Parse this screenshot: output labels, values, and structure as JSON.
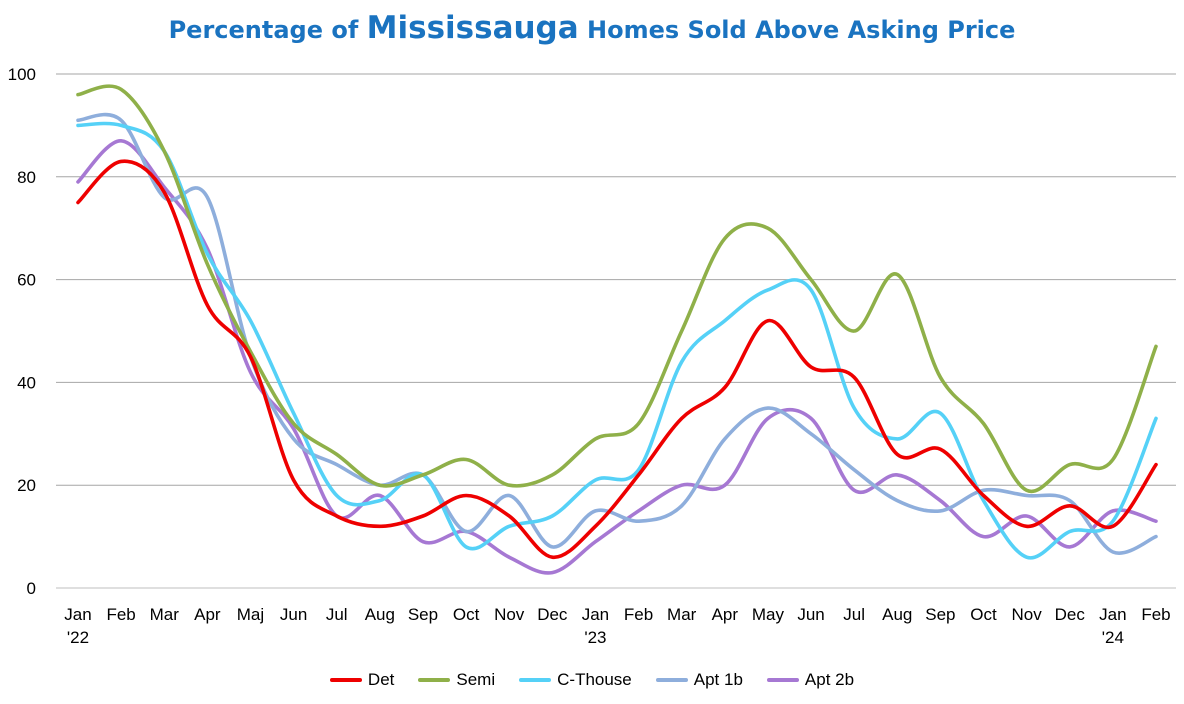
{
  "title": {
    "prefix": "Percentage of ",
    "highlight": "Mississauga",
    "suffix": " Homes Sold Above Asking Price"
  },
  "chart_data": {
    "type": "line",
    "title": "Percentage of Mississauga Homes Sold Above Asking Price",
    "xlabel": "",
    "ylabel": "",
    "ylim": [
      0,
      100
    ],
    "yticks": [
      0,
      20,
      40,
      60,
      80,
      100
    ],
    "grid": true,
    "legend_position": "bottom",
    "categories": [
      "Jan|'22",
      "Feb",
      "Mar",
      "Apr",
      "Maj",
      "Jun",
      "Jul",
      "Aug",
      "Sep",
      "Oct",
      "Nov",
      "Dec",
      "Jan|'23",
      "Feb",
      "Mar",
      "Apr",
      "May",
      "Jun",
      "Jul",
      "Aug",
      "Sep",
      "Oct",
      "Nov",
      "Dec",
      "Jan|'24",
      "Feb"
    ],
    "series": [
      {
        "name": "Det",
        "color": "#ee0000",
        "values": [
          75,
          83,
          77,
          55,
          45,
          21,
          14,
          12,
          14,
          18,
          14,
          6,
          12,
          22,
          33,
          39,
          52,
          43,
          41,
          26,
          27,
          18,
          12,
          16,
          12,
          24
        ]
      },
      {
        "name": "Semi",
        "color": "#8fb049",
        "values": [
          96,
          97,
          85,
          63,
          46,
          32,
          26,
          20,
          22,
          25,
          20,
          22,
          29,
          32,
          50,
          68,
          70,
          60,
          50,
          61,
          41,
          32,
          19,
          24,
          25,
          47
        ]
      },
      {
        "name": "C-Thouse",
        "color": "#55d1f7",
        "values": [
          90,
          90,
          85,
          65,
          52,
          34,
          18,
          17,
          22,
          8,
          12,
          14,
          21,
          23,
          44,
          52,
          58,
          58,
          35,
          29,
          34,
          17,
          6,
          11,
          13,
          33
        ]
      },
      {
        "name": "Apt 1b",
        "color": "#8eaedc",
        "values": [
          91,
          91,
          76,
          76,
          45,
          29,
          24,
          20,
          22,
          11,
          18,
          8,
          15,
          13,
          16,
          29,
          35,
          30,
          23,
          17,
          15,
          19,
          18,
          17,
          7,
          10
        ]
      },
      {
        "name": "Apt 2b",
        "color": "#a678d3",
        "values": [
          79,
          87,
          78,
          66,
          42,
          31,
          14,
          18,
          9,
          11,
          6,
          3,
          9,
          15,
          20,
          20,
          33,
          33,
          19,
          22,
          17,
          10,
          14,
          8,
          15,
          13
        ]
      }
    ]
  }
}
